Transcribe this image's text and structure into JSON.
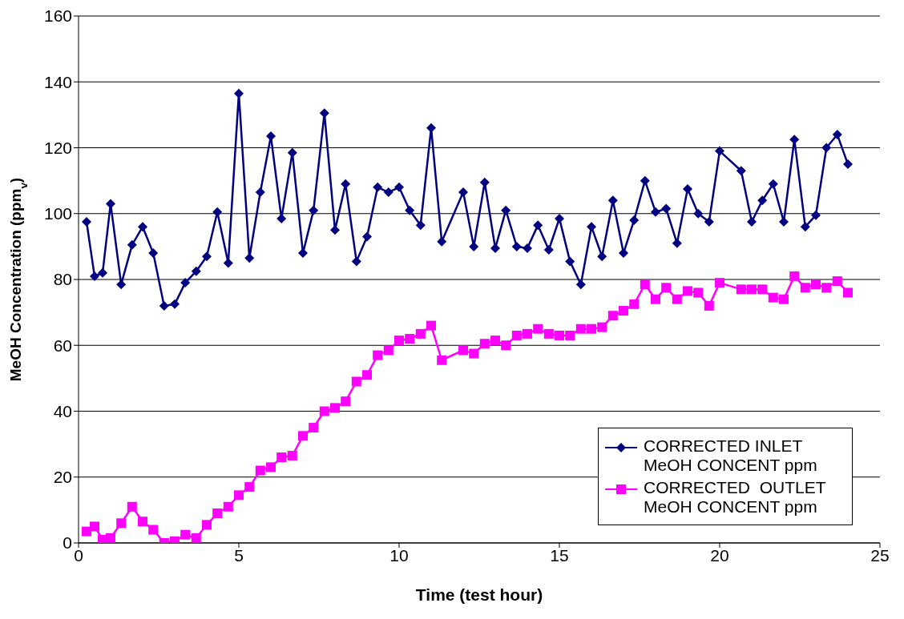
{
  "chart_data": {
    "type": "line",
    "xlabel": "Time (test hour)",
    "ylabel": "MeOH Concentration (ppm$_{v}$)",
    "x": [
      0.25,
      0.5,
      0.75,
      1,
      1.33,
      1.67,
      2,
      2.33,
      2.67,
      3,
      3.33,
      3.67,
      4,
      4.33,
      4.67,
      5,
      5.33,
      5.67,
      6,
      6.33,
      6.67,
      7,
      7.33,
      7.67,
      8,
      8.33,
      8.67,
      9,
      9.33,
      9.67,
      10,
      10.33,
      10.67,
      11,
      11.33,
      12,
      12.33,
      12.67,
      13,
      13.33,
      13.67,
      14,
      14.33,
      14.67,
      15,
      15.33,
      15.67,
      16,
      16.33,
      16.67,
      17,
      17.33,
      17.67,
      18,
      18.33,
      18.67,
      19,
      19.33,
      19.67,
      20,
      20.67,
      21,
      21.33,
      21.67,
      22,
      22.33,
      22.67,
      23,
      23.33,
      23.67,
      24
    ],
    "series": [
      {
        "name": "CORRECTED INLET MeOH CONCENT ppm",
        "color": "#000080",
        "marker": "diamond",
        "values": [
          97.5,
          81,
          82,
          103,
          78.5,
          90.5,
          96,
          88,
          72,
          72.5,
          79,
          82.5,
          87,
          100.5,
          85,
          136.5,
          86.5,
          106.5,
          123.5,
          98.5,
          118.5,
          88,
          101,
          130.5,
          95,
          109,
          85.5,
          93,
          108,
          106.5,
          108,
          101,
          96.5,
          126,
          91.5,
          106.5,
          90,
          109.5,
          89.5,
          101,
          90,
          89.5,
          96.5,
          89,
          98.5,
          85.5,
          78.5,
          96,
          87,
          104,
          88,
          98,
          110,
          100.5,
          101.5,
          91,
          107.5,
          100,
          97.5,
          119,
          113,
          97.5,
          104,
          109,
          97.5,
          122.5,
          96,
          99.5,
          120,
          124,
          115
        ]
      },
      {
        "name": "CORRECTED  OUTLET MeOH CONCENT ppm",
        "color": "#ff00ff",
        "marker": "square",
        "values": [
          3.5,
          5,
          1,
          1.5,
          6,
          11,
          6.5,
          4,
          0,
          0.5,
          2.5,
          1.5,
          5.5,
          9,
          11,
          14.5,
          17,
          22,
          23,
          26,
          26.5,
          32.5,
          35,
          40,
          41,
          43,
          49,
          51,
          57,
          58.5,
          61.5,
          62,
          63.5,
          66,
          55.5,
          58.5,
          57.5,
          60.5,
          61.5,
          60,
          63,
          63.5,
          65,
          63.5,
          63,
          63,
          65,
          65,
          65.5,
          69,
          70.5,
          72.5,
          78.5,
          74,
          77.5,
          74,
          76.5,
          76,
          72,
          79,
          77,
          77,
          77,
          74.5,
          74,
          81,
          77.5,
          78.5,
          77.5,
          79.5,
          76
        ]
      }
    ],
    "xlim": [
      0,
      25
    ],
    "xticks": [
      0,
      5,
      10,
      15,
      20,
      25
    ],
    "ylim": [
      0,
      160
    ],
    "yticks": [
      0,
      20,
      40,
      60,
      80,
      100,
      120,
      140,
      160
    ],
    "grid": "y",
    "legend": "bottom right",
    "line_style": "solid"
  }
}
